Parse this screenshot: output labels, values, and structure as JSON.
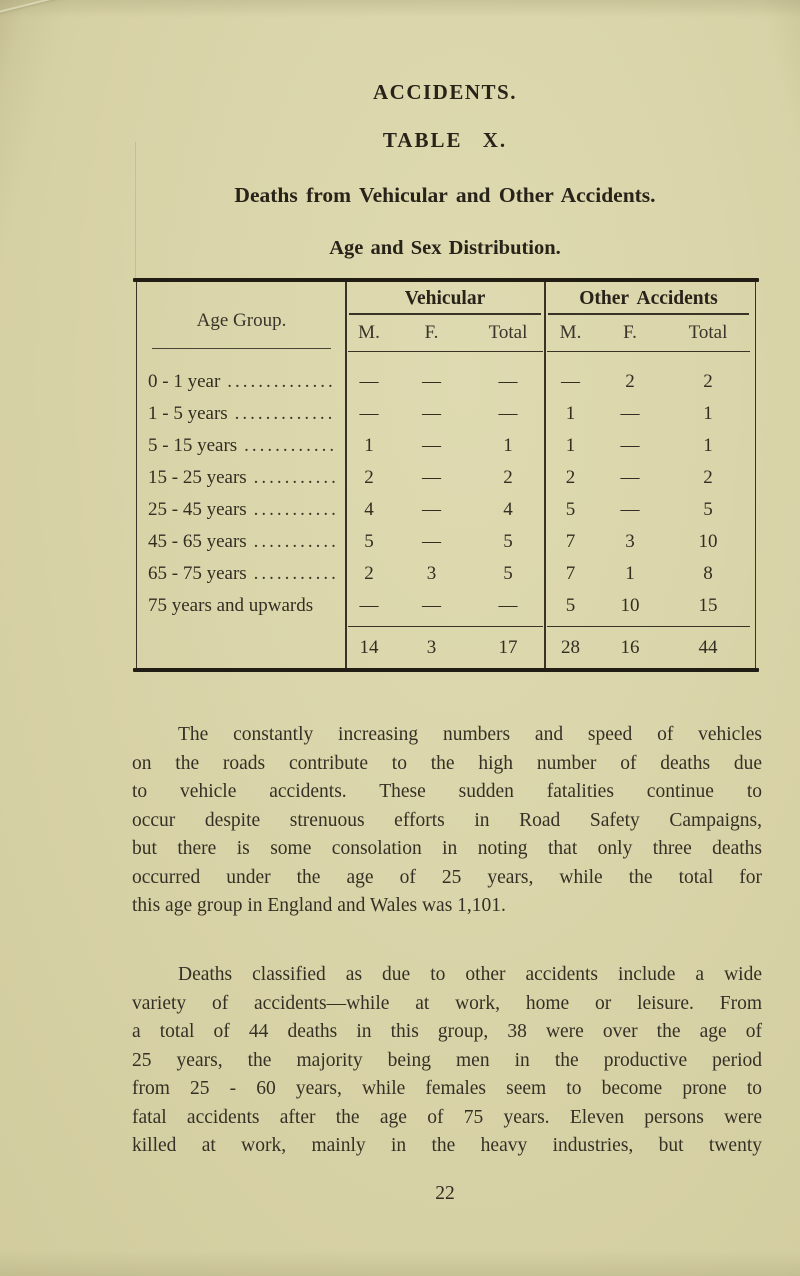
{
  "titles": {
    "section": "ACCIDENTS.",
    "table": "TABLE X.",
    "subtitle": "Deaths from Vehicular and Other Accidents.",
    "distribution": "Age and Sex Distribution."
  },
  "table": {
    "age_group_header": "Age Group.",
    "group_vehicular": "Vehicular",
    "group_other": "Other Accidents",
    "subcols": {
      "m": "M.",
      "f": "F.",
      "total": "Total"
    },
    "rows": [
      {
        "label": "0 - 1 year",
        "leader": "......................",
        "vm": "—",
        "vf": "—",
        "vt": "—",
        "om": "—",
        "of": "2",
        "ot": "2"
      },
      {
        "label": "1 - 5 years",
        "leader": "......................",
        "vm": "—",
        "vf": "—",
        "vt": "—",
        "om": "1",
        "of": "—",
        "ot": "1"
      },
      {
        "label": "5 - 15 years",
        "leader": "......................",
        "vm": "1",
        "vf": "—",
        "vt": "1",
        "om": "1",
        "of": "—",
        "ot": "1"
      },
      {
        "label": "15 - 25 years",
        "leader": "......................",
        "vm": "2",
        "vf": "—",
        "vt": "2",
        "om": "2",
        "of": "—",
        "ot": "2"
      },
      {
        "label": "25 - 45 years",
        "leader": "......................",
        "vm": "4",
        "vf": "—",
        "vt": "4",
        "om": "5",
        "of": "—",
        "ot": "5"
      },
      {
        "label": "45 - 65 years",
        "leader": "......................",
        "vm": "5",
        "vf": "—",
        "vt": "5",
        "om": "7",
        "of": "3",
        "ot": "10"
      },
      {
        "label": "65 - 75 years",
        "leader": "......................",
        "vm": "2",
        "vf": "3",
        "vt": "5",
        "om": "7",
        "of": "1",
        "ot": "8"
      },
      {
        "label": "75 years and upwards",
        "leader": "",
        "vm": "—",
        "vf": "—",
        "vt": "—",
        "om": "5",
        "of": "10",
        "ot": "15"
      }
    ],
    "totals": {
      "vm": "14",
      "vf": "3",
      "vt": "17",
      "om": "28",
      "of": "16",
      "ot": "44"
    }
  },
  "paragraphs": {
    "p1": {
      "lines": [
        "The constantly increasing numbers and speed of vehicles",
        "on the roads contribute to the high number of deaths due",
        "to vehicle accidents. These sudden fatalities continue to",
        "occur despite strenuous efforts in Road Safety Campaigns,",
        "but there is some consolation in noting that only three deaths",
        "occurred under the age of 25 years, while the total for",
        "this age group in England and Wales was 1,101."
      ]
    },
    "p2": {
      "lines": [
        "Deaths classified as due to other accidents include a wide",
        "variety of accidents—while at work, home or leisure. From",
        "a total of 44 deaths in this group, 38 were over the age of",
        "25 years, the majority being men in the productive period",
        "from 25 - 60 years, while females seem to become prone to",
        "fatal accidents after the age of 75 years. Eleven persons were",
        "killed at work, mainly in the heavy industries, but twenty"
      ]
    }
  },
  "page_number": "22",
  "colors": {
    "paper": "#d8d3a7",
    "ink": "#332d22",
    "rule": "#211d15"
  }
}
